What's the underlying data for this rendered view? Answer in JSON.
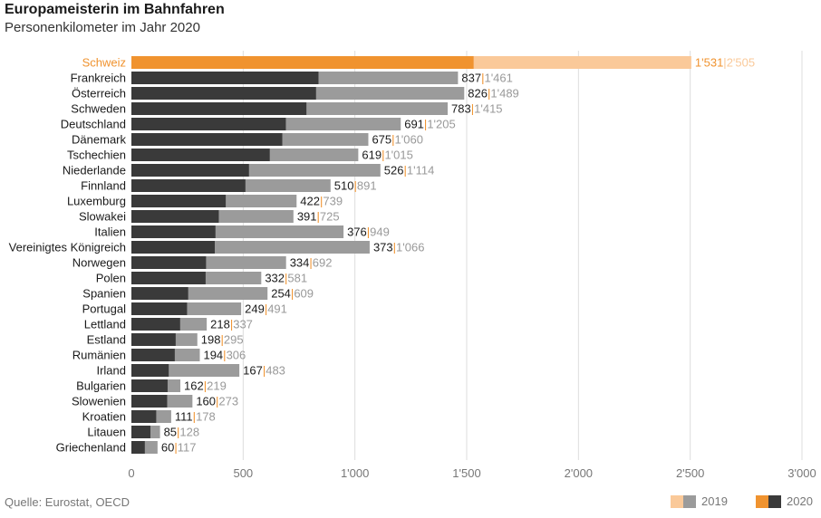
{
  "header": {
    "title": "Europameisterin im Bahnfahren",
    "subtitle": "Personenkilometer im Jahr 2020"
  },
  "source": "Quelle: Eurostat, OECD",
  "legend": {
    "label_2019": "2019",
    "label_2020": "2020"
  },
  "colors": {
    "highlight_2020": "#f0932f",
    "highlight_2019": "#fac999",
    "bar_2020": "#3a3a3a",
    "bar_2019": "#9b9b9b",
    "label_2019_text": "#999999",
    "highlight_text": "#f0932f",
    "grid": "#dddddd"
  },
  "chart_data": {
    "type": "bar",
    "orientation": "horizontal",
    "categories": [
      "Schweiz",
      "Frankreich",
      "Österreich",
      "Schweden",
      "Deutschland",
      "Dänemark",
      "Tschechien",
      "Niederlande",
      "Finnland",
      "Luxemburg",
      "Slowakei",
      "Italien",
      "Vereinigtes Königreich",
      "Norwegen",
      "Polen",
      "Spanien",
      "Portugal",
      "Lettland",
      "Estland",
      "Rumänien",
      "Irland",
      "Bulgarien",
      "Slowenien",
      "Kroatien",
      "Litauen",
      "Griechenland"
    ],
    "series": [
      {
        "name": "2020",
        "values": [
          1531,
          837,
          826,
          783,
          691,
          675,
          619,
          526,
          510,
          422,
          391,
          376,
          373,
          334,
          332,
          254,
          249,
          218,
          198,
          194,
          167,
          162,
          160,
          111,
          85,
          60
        ]
      },
      {
        "name": "2019",
        "values": [
          2505,
          1461,
          1489,
          1415,
          1205,
          1060,
          1015,
          1114,
          891,
          739,
          725,
          949,
          1066,
          692,
          581,
          609,
          491,
          337,
          295,
          306,
          483,
          219,
          273,
          178,
          128,
          117
        ]
      }
    ],
    "value_labels_2020": [
      "1'531",
      "837",
      "826",
      "783",
      "691",
      "675",
      "619",
      "526",
      "510",
      "422",
      "391",
      "376",
      "373",
      "334",
      "332",
      "254",
      "249",
      "218",
      "198",
      "194",
      "167",
      "162",
      "160",
      "111",
      "85",
      "60"
    ],
    "value_labels_2019": [
      "2'505",
      "1'461",
      "1'489",
      "1'415",
      "1'205",
      "1'060",
      "1'015",
      "1'114",
      "891",
      "739",
      "725",
      "949",
      "1'066",
      "692",
      "581",
      "609",
      "491",
      "337",
      "295",
      "306",
      "483",
      "219",
      "273",
      "178",
      "128",
      "117"
    ],
    "highlight_category": "Schweiz",
    "xlim": [
      0,
      3000
    ],
    "xticks": [
      0,
      500,
      1000,
      1500,
      2000,
      2500,
      3000
    ],
    "xtick_labels": [
      "0",
      "500",
      "1'000",
      "1'500",
      "2'000",
      "2'500",
      "3'000"
    ],
    "grid": "vertical",
    "legend_position": "bottom-right"
  }
}
